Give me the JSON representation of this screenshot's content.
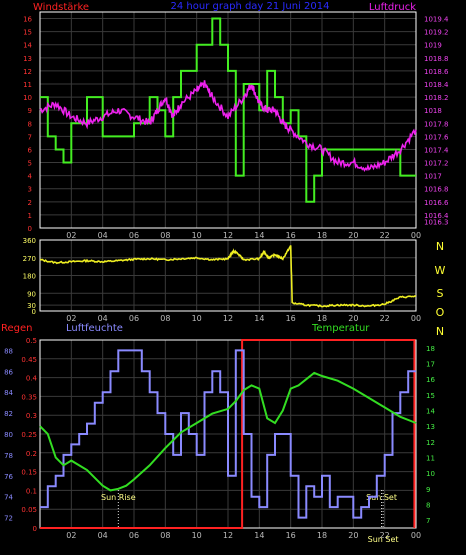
{
  "colors": {
    "background": "#000000",
    "grid": "#3a3a3a",
    "frame": "#ffffff",
    "wind_speed": "#44ee22",
    "pressure": "#ee22ee",
    "wind_direction": "#eeee22",
    "rain": "#ff2222",
    "humidity": "#8a8aff",
    "temperature": "#33dd22",
    "title": "#2a2aff",
    "annotation": "#ffff88"
  },
  "header": {
    "left_label": "Windstärke",
    "title": "24 hour graph day  21 Juni 2014",
    "right_label": "Luftdruck"
  },
  "chart_data": [
    {
      "type": "line",
      "panel": "wind_pressure",
      "title": "24 hour graph day  21 Juni 2014",
      "x_tick_labels": [
        "02",
        "04",
        "06",
        "08",
        "10",
        "12",
        "14",
        "16",
        "18",
        "20",
        "22",
        "00"
      ],
      "xlim": [
        0,
        24
      ],
      "left_axis": {
        "label": "Windstärke",
        "ylim": [
          0,
          16.5
        ],
        "ticks": [
          0,
          1,
          2,
          3,
          4,
          5,
          6,
          7,
          8,
          9,
          10,
          11,
          12,
          13,
          14,
          15,
          16
        ]
      },
      "right_axis": {
        "label": "Luftdruck",
        "ylim": [
          1016.2,
          1019.5
        ],
        "ticks": [
          "1016.3",
          "1016.4",
          "1016.6",
          "1016.8",
          "1017",
          "1017.2",
          "1017.4",
          "1017.6",
          "1017.8",
          "1018",
          "1018.2",
          "1018.4",
          "1018.6",
          "1018.8",
          "1019",
          "1019.2",
          "1019.4"
        ]
      },
      "grid": true,
      "series": [
        {
          "name": "Windstärke",
          "axis": "left",
          "step": true,
          "x": [
            0,
            0.5,
            1,
            1.5,
            2,
            3,
            4,
            5,
            6,
            7,
            7.5,
            8,
            8.5,
            9,
            10,
            11,
            11.5,
            12,
            12.5,
            13,
            14,
            14.5,
            15,
            15.5,
            16,
            16.5,
            17,
            17.5,
            18,
            19,
            20,
            21,
            22,
            23,
            24
          ],
          "y": [
            10,
            7,
            6,
            5,
            8,
            10,
            7,
            7,
            8,
            10,
            9,
            7,
            10,
            12,
            14,
            16,
            14,
            12,
            4,
            11,
            9,
            12,
            10,
            8,
            9,
            7,
            2,
            4,
            6,
            6,
            6,
            6,
            6,
            4,
            4
          ]
        },
        {
          "name": "Luftdruck",
          "axis": "right",
          "x": [
            0,
            1,
            2,
            3,
            4,
            5,
            6,
            7,
            7.5,
            8,
            8.5,
            9,
            10,
            10.5,
            11,
            12,
            13,
            13.5,
            14,
            14.5,
            15,
            15.5,
            16,
            17,
            18,
            19,
            20,
            21,
            22,
            23,
            24
          ],
          "y": [
            1018.0,
            1018.1,
            1017.9,
            1017.8,
            1017.9,
            1018.0,
            1017.9,
            1017.8,
            1018.0,
            1018.2,
            1017.9,
            1018.1,
            1018.3,
            1018.4,
            1018.2,
            1017.9,
            1018.2,
            1018.4,
            1018.1,
            1018.0,
            1018.0,
            1017.8,
            1017.7,
            1017.5,
            1017.4,
            1017.2,
            1017.2,
            1017.1,
            1017.2,
            1017.4,
            1017.7
          ]
        }
      ]
    },
    {
      "type": "line",
      "panel": "wind_direction",
      "x_tick_labels": [
        "02",
        "04",
        "06",
        "08",
        "10",
        "12",
        "14",
        "16",
        "18",
        "20",
        "22",
        "00"
      ],
      "xlim": [
        0,
        24
      ],
      "left_axis": {
        "ylim": [
          0,
          360
        ],
        "ticks": [
          0,
          30,
          90,
          180,
          270,
          360
        ]
      },
      "right_axis": {
        "ticks": [
          "N",
          "W",
          "S",
          "O",
          "N"
        ]
      },
      "grid": true,
      "series": [
        {
          "name": "",
          "x": [
            0,
            1,
            2,
            3,
            4,
            5,
            6,
            7,
            8,
            9,
            10,
            11,
            12,
            12.3,
            12.5,
            13,
            14,
            14.3,
            14.6,
            15,
            15.5,
            16,
            16.1,
            17,
            18,
            19,
            20,
            21,
            22,
            23,
            24
          ],
          "y": [
            260,
            245,
            250,
            255,
            250,
            255,
            262,
            265,
            260,
            265,
            270,
            260,
            265,
            300,
            300,
            260,
            265,
            300,
            270,
            285,
            265,
            330,
            40,
            30,
            25,
            30,
            30,
            25,
            35,
            70,
            75
          ]
        }
      ]
    },
    {
      "type": "line",
      "panel": "rain_humidity_temperature",
      "x_tick_labels": [
        "02",
        "04",
        "06",
        "08",
        "10",
        "12",
        "14",
        "16",
        "18",
        "20",
        "22",
        "00"
      ],
      "xlim": [
        0,
        24
      ],
      "rain_axis": {
        "label": "Regen",
        "ylim": [
          0,
          0.5
        ],
        "ticks": [
          "0",
          "0.05",
          "0.1",
          "0.15",
          "0.2",
          "0.25",
          "0.3",
          "0.35",
          "0.4",
          "0.45",
          "0.5"
        ]
      },
      "humidity_axis": {
        "label": "Luftfeuchte",
        "ylim": [
          71,
          89
        ],
        "ticks": [
          72,
          74,
          76,
          78,
          80,
          82,
          84,
          86,
          88
        ]
      },
      "temperature_axis": {
        "label": "Temperatur",
        "ylim": [
          6.5,
          18.5
        ],
        "ticks": [
          7,
          8,
          9,
          10,
          11,
          12,
          13,
          14,
          15,
          16,
          17,
          18
        ]
      },
      "grid": true,
      "annotations": [
        {
          "text": "Sun Rise",
          "x": 5.0
        },
        {
          "text": "Sun Set",
          "x": 21.8
        },
        {
          "text": "Sun Set",
          "x": 21.9
        }
      ],
      "series": [
        {
          "name": "Regen",
          "axis": "rain",
          "x": [
            0,
            12.9,
            12.9,
            23.9,
            23.9
          ],
          "y": [
            0,
            0,
            0.5,
            0.5,
            0
          ]
        },
        {
          "name": "Luftfeuchte",
          "axis": "humidity",
          "step": true,
          "x": [
            0,
            0.5,
            1,
            1.5,
            2,
            2.5,
            3,
            3.5,
            4,
            4.5,
            5,
            5.5,
            6,
            6.5,
            7,
            7.5,
            8,
            8.5,
            9,
            9.5,
            10,
            10.5,
            11,
            11.5,
            12,
            12.5,
            13,
            13.5,
            14,
            14.5,
            15,
            15.5,
            16,
            16.5,
            17,
            17.5,
            18,
            18.5,
            19,
            19.5,
            20,
            20.5,
            21,
            21.5,
            22,
            22.5,
            23,
            23.5,
            24
          ],
          "y": [
            73,
            75,
            76,
            78,
            79,
            80,
            81,
            83,
            84,
            86,
            88,
            88,
            88,
            86,
            84,
            82,
            80,
            78,
            82,
            80,
            78,
            84,
            86,
            84,
            76,
            88,
            80,
            74,
            73,
            78,
            80,
            80,
            76,
            72,
            75,
            74,
            76,
            73,
            74,
            74,
            72,
            73,
            74,
            76,
            78,
            82,
            84,
            86,
            86
          ]
        },
        {
          "name": "Temperatur",
          "axis": "temperature",
          "x": [
            0,
            0.5,
            1,
            1.5,
            2,
            3,
            4,
            4.5,
            5,
            5.5,
            6,
            7,
            8,
            9,
            10,
            11,
            12,
            12.5,
            13,
            13.5,
            14,
            14.5,
            15,
            15.5,
            16,
            16.5,
            17,
            17.5,
            18,
            19,
            20,
            21,
            22,
            23,
            24
          ],
          "y": [
            13,
            12.5,
            11,
            10.5,
            10.8,
            10.2,
            9.2,
            8.9,
            9,
            9.2,
            9.6,
            10.5,
            11.6,
            12.6,
            13.2,
            13.8,
            14.1,
            14.6,
            15.3,
            15.6,
            15.4,
            13.5,
            13.2,
            14,
            15.4,
            15.6,
            16.0,
            16.4,
            16.2,
            15.9,
            15.4,
            14.8,
            14.2,
            13.6,
            13.2
          ]
        }
      ]
    }
  ],
  "panel2_right_labels": [
    "N",
    "W",
    "S",
    "O",
    "N"
  ],
  "panel3_labels": {
    "rain": "Regen",
    "humidity": "Luftfeuchte",
    "temperature": "Temperatur"
  }
}
